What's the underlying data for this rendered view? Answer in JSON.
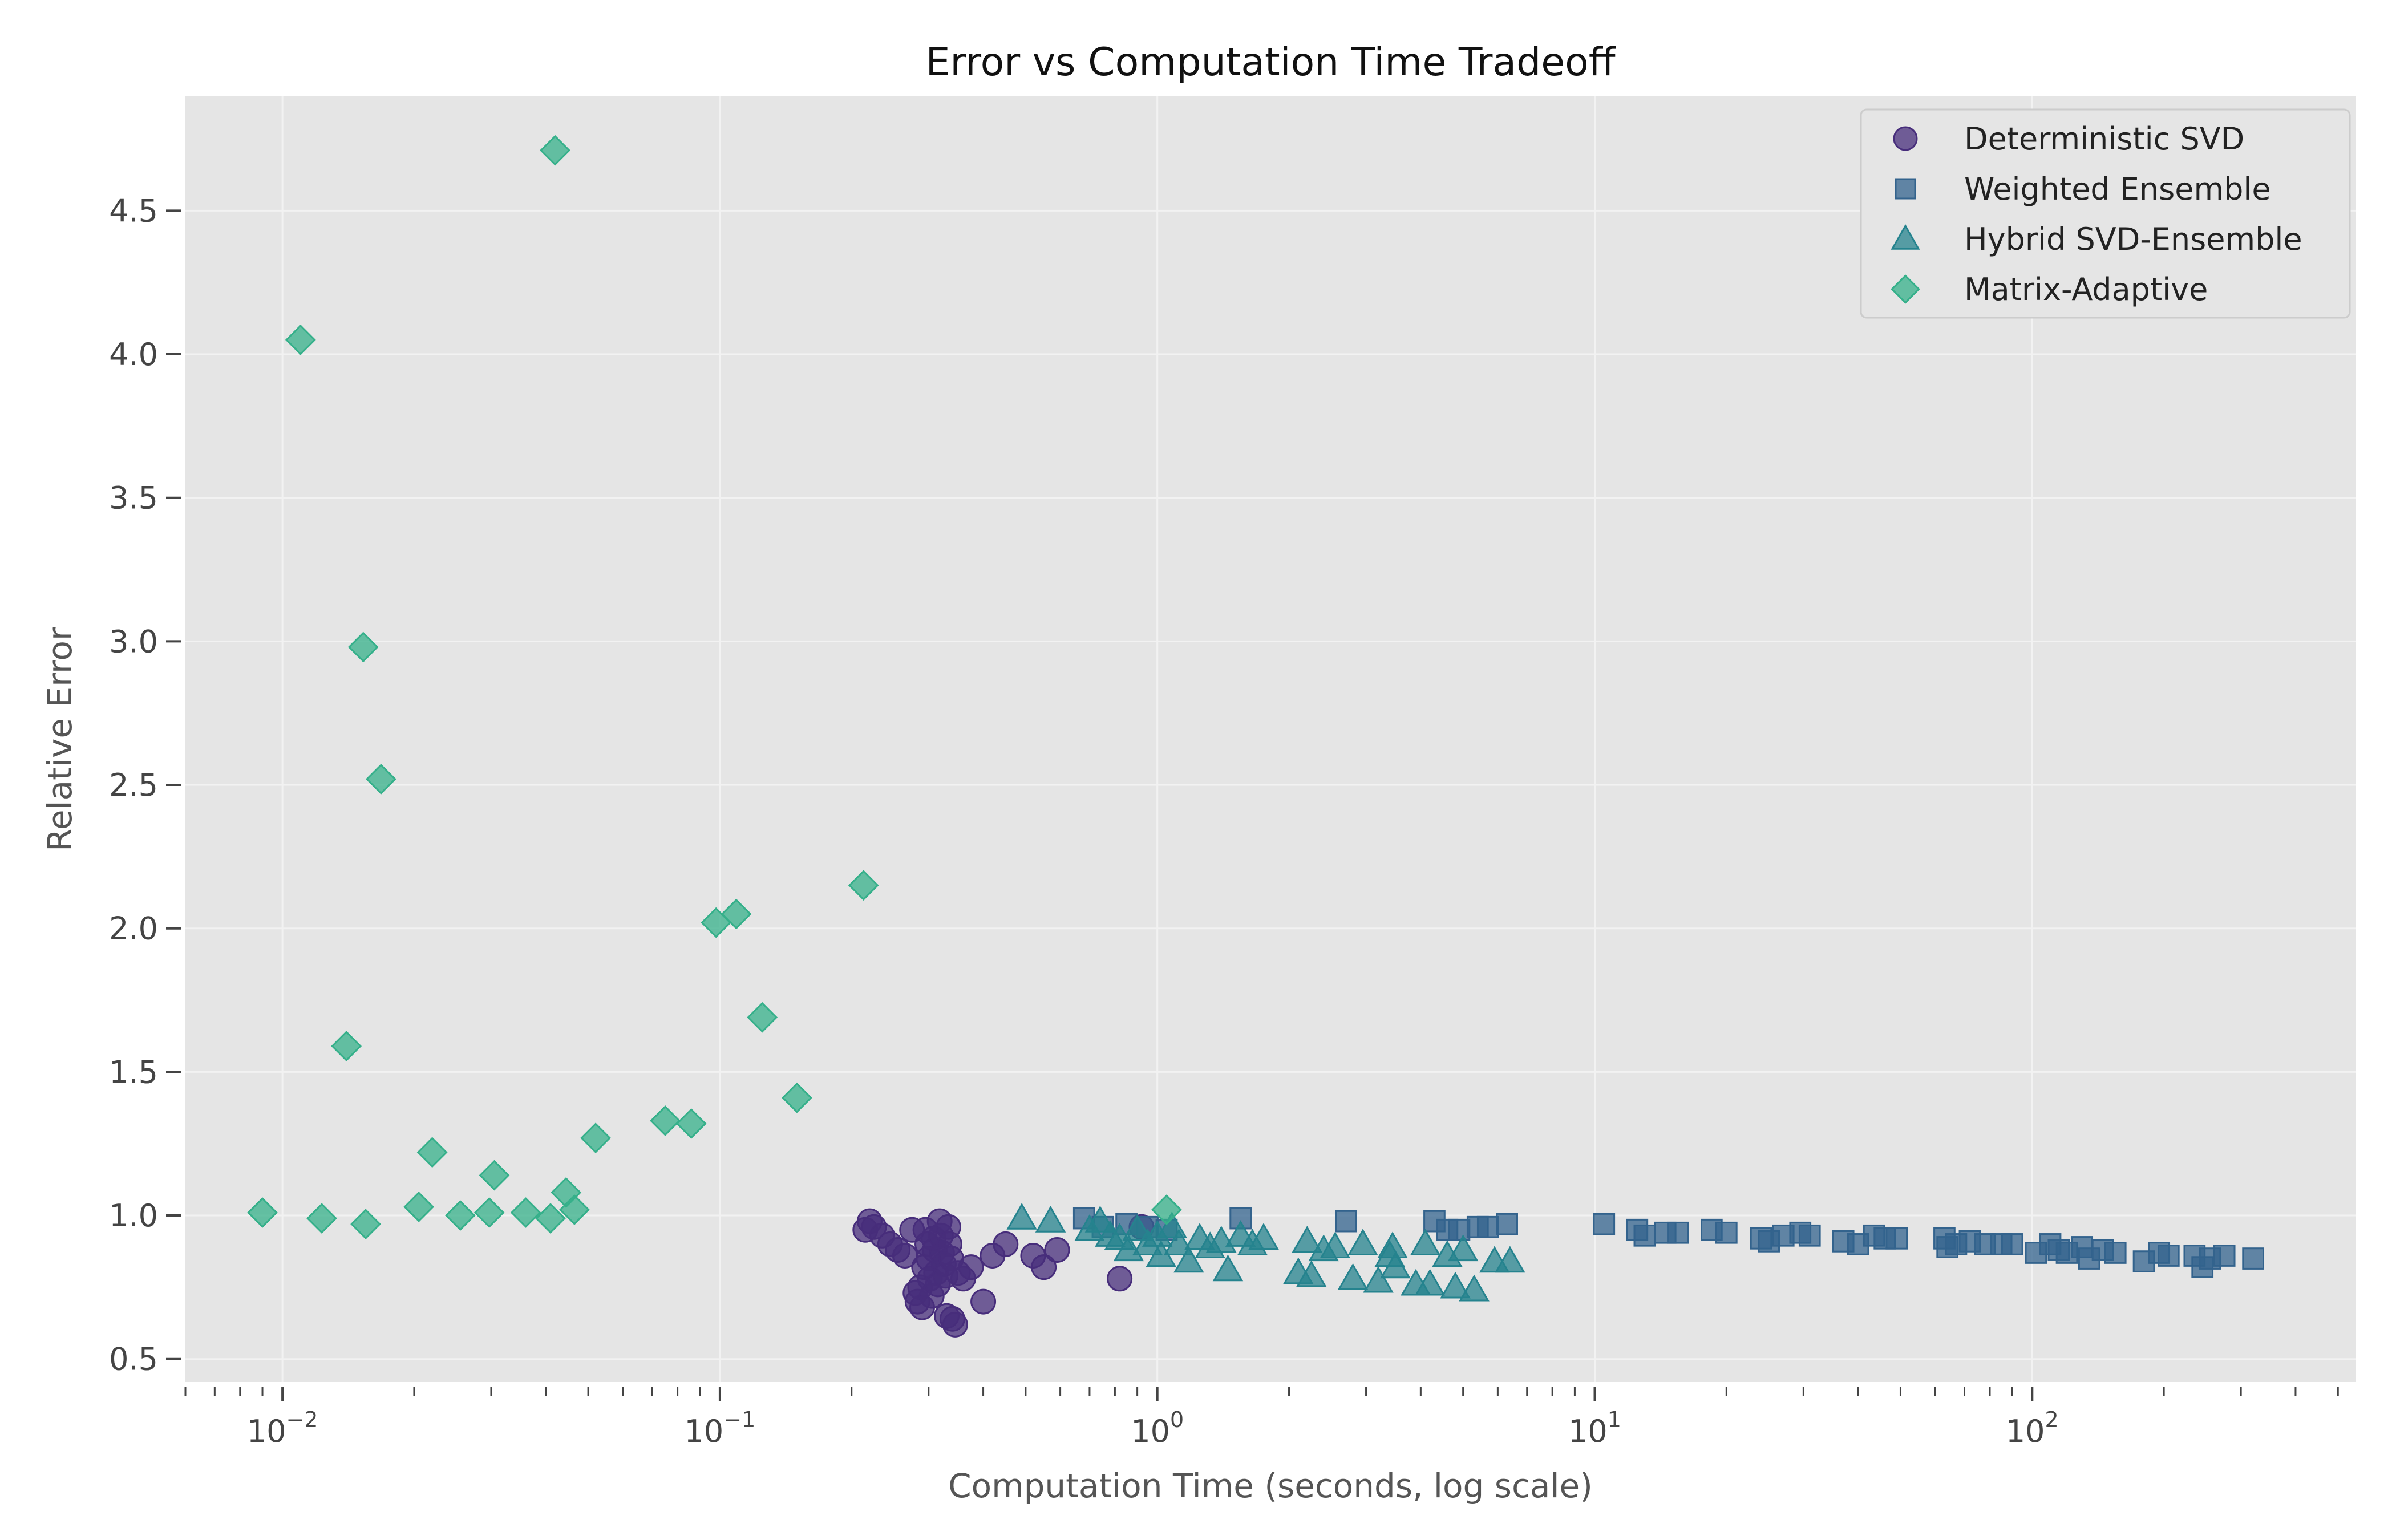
{
  "chart_data": {
    "type": "scatter",
    "title": "Error vs Computation Time Tradeoff",
    "xlabel": "Computation Time (seconds, log scale)",
    "ylabel": "Relative Error",
    "xscale": "log",
    "xlim": [
      0.006,
      550
    ],
    "ylim": [
      0.42,
      4.9
    ],
    "yticks": [
      0.5,
      1.0,
      1.5,
      2.0,
      2.5,
      3.0,
      3.5,
      4.0,
      4.5
    ],
    "ytick_labels": [
      "0.5",
      "1.0",
      "1.5",
      "2.0",
      "2.5",
      "3.0",
      "3.5",
      "4.0",
      "4.5"
    ],
    "xticks_major": [
      0.01,
      0.1,
      1,
      10,
      100
    ],
    "xtick_labels": [
      {
        "base": "10",
        "exp": "−2"
      },
      {
        "base": "10",
        "exp": "−1"
      },
      {
        "base": "10",
        "exp": "0"
      },
      {
        "base": "10",
        "exp": "1"
      },
      {
        "base": "10",
        "exp": "2"
      }
    ],
    "grid": true,
    "background": "#e5e5e5",
    "legend_position": "top-right",
    "series": [
      {
        "name": "Deterministic SVD",
        "marker": "circle",
        "color": "#472d7b",
        "points": [
          [
            0.215,
            0.95
          ],
          [
            0.22,
            0.98
          ],
          [
            0.225,
            0.96
          ],
          [
            0.235,
            0.93
          ],
          [
            0.245,
            0.9
          ],
          [
            0.255,
            0.88
          ],
          [
            0.265,
            0.86
          ],
          [
            0.275,
            0.95
          ],
          [
            0.28,
            0.73
          ],
          [
            0.283,
            0.7
          ],
          [
            0.287,
            0.75
          ],
          [
            0.29,
            0.68
          ],
          [
            0.293,
            0.82
          ],
          [
            0.295,
            0.95
          ],
          [
            0.298,
            0.9
          ],
          [
            0.3,
            0.85
          ],
          [
            0.302,
            0.78
          ],
          [
            0.305,
            0.72
          ],
          [
            0.308,
            0.92
          ],
          [
            0.31,
            0.88
          ],
          [
            0.312,
            0.8
          ],
          [
            0.315,
            0.76
          ],
          [
            0.318,
            0.98
          ],
          [
            0.32,
            0.93
          ],
          [
            0.322,
            0.87
          ],
          [
            0.325,
            0.83
          ],
          [
            0.328,
            0.79
          ],
          [
            0.33,
            0.65
          ],
          [
            0.333,
            0.96
          ],
          [
            0.335,
            0.9
          ],
          [
            0.338,
            0.85
          ],
          [
            0.34,
            0.64
          ],
          [
            0.345,
            0.62
          ],
          [
            0.35,
            0.8
          ],
          [
            0.36,
            0.78
          ],
          [
            0.375,
            0.82
          ],
          [
            0.4,
            0.7
          ],
          [
            0.42,
            0.86
          ],
          [
            0.45,
            0.9
          ],
          [
            0.52,
            0.86
          ],
          [
            0.55,
            0.82
          ],
          [
            0.59,
            0.88
          ],
          [
            0.82,
            0.78
          ],
          [
            0.92,
            0.96
          ]
        ]
      },
      {
        "name": "Weighted Ensemble",
        "marker": "square",
        "color": "#33638d",
        "points": [
          [
            0.68,
            0.99
          ],
          [
            0.75,
            0.96
          ],
          [
            0.85,
            0.97
          ],
          [
            0.95,
            0.96
          ],
          [
            1.05,
            0.95
          ],
          [
            1.55,
            0.99
          ],
          [
            2.7,
            0.98
          ],
          [
            4.3,
            0.98
          ],
          [
            4.6,
            0.95
          ],
          [
            4.9,
            0.95
          ],
          [
            5.4,
            0.96
          ],
          [
            5.7,
            0.96
          ],
          [
            6.3,
            0.97
          ],
          [
            10.5,
            0.97
          ],
          [
            12.5,
            0.95
          ],
          [
            13.0,
            0.93
          ],
          [
            14.5,
            0.94
          ],
          [
            15.5,
            0.94
          ],
          [
            18.5,
            0.95
          ],
          [
            20.0,
            0.94
          ],
          [
            24.0,
            0.92
          ],
          [
            25.0,
            0.91
          ],
          [
            27.0,
            0.93
          ],
          [
            29.5,
            0.94
          ],
          [
            31.0,
            0.93
          ],
          [
            37.0,
            0.91
          ],
          [
            40.0,
            0.9
          ],
          [
            43.5,
            0.93
          ],
          [
            46.0,
            0.92
          ],
          [
            49.0,
            0.92
          ],
          [
            63.0,
            0.92
          ],
          [
            64.0,
            0.89
          ],
          [
            67.0,
            0.9
          ],
          [
            72.0,
            0.91
          ],
          [
            78.0,
            0.9
          ],
          [
            85.0,
            0.9
          ],
          [
            90.0,
            0.9
          ],
          [
            102.0,
            0.87
          ],
          [
            110.0,
            0.9
          ],
          [
            115.0,
            0.88
          ],
          [
            120.0,
            0.87
          ],
          [
            130.0,
            0.89
          ],
          [
            135.0,
            0.85
          ],
          [
            145.0,
            0.88
          ],
          [
            155.0,
            0.87
          ],
          [
            180.0,
            0.84
          ],
          [
            195.0,
            0.87
          ],
          [
            205.0,
            0.86
          ],
          [
            235.0,
            0.86
          ],
          [
            245.0,
            0.82
          ],
          [
            255.0,
            0.85
          ],
          [
            275.0,
            0.86
          ],
          [
            320.0,
            0.85
          ]
        ]
      },
      {
        "name": "Hybrid SVD-Ensemble",
        "marker": "triangle",
        "color": "#25838e",
        "points": [
          [
            0.49,
            0.99
          ],
          [
            0.57,
            0.98
          ],
          [
            0.7,
            0.95
          ],
          [
            0.74,
            0.98
          ],
          [
            0.78,
            0.93
          ],
          [
            0.82,
            0.92
          ],
          [
            0.86,
            0.88
          ],
          [
            0.9,
            0.95
          ],
          [
            0.95,
            0.9
          ],
          [
            1.0,
            0.93
          ],
          [
            1.02,
            0.86
          ],
          [
            1.08,
            0.96
          ],
          [
            1.12,
            0.9
          ],
          [
            1.18,
            0.84
          ],
          [
            1.25,
            0.92
          ],
          [
            1.32,
            0.89
          ],
          [
            1.4,
            0.91
          ],
          [
            1.45,
            0.81
          ],
          [
            1.55,
            0.93
          ],
          [
            1.65,
            0.9
          ],
          [
            1.75,
            0.92
          ],
          [
            2.1,
            0.8
          ],
          [
            2.2,
            0.91
          ],
          [
            2.25,
            0.79
          ],
          [
            2.4,
            0.88
          ],
          [
            2.55,
            0.89
          ],
          [
            2.8,
            0.78
          ],
          [
            2.95,
            0.9
          ],
          [
            3.2,
            0.77
          ],
          [
            3.4,
            0.86
          ],
          [
            3.45,
            0.89
          ],
          [
            3.5,
            0.82
          ],
          [
            3.9,
            0.76
          ],
          [
            4.1,
            0.9
          ],
          [
            4.2,
            0.76
          ],
          [
            4.6,
            0.86
          ],
          [
            4.8,
            0.75
          ],
          [
            5.0,
            0.88
          ],
          [
            5.3,
            0.74
          ],
          [
            5.9,
            0.84
          ],
          [
            6.4,
            0.84
          ]
        ]
      },
      {
        "name": "Matrix-Adaptive",
        "marker": "diamond",
        "color": "#35b08a",
        "points": [
          [
            0.009,
            1.01
          ],
          [
            0.011,
            4.05
          ],
          [
            0.0123,
            0.99
          ],
          [
            0.014,
            1.59
          ],
          [
            0.0153,
            2.98
          ],
          [
            0.0155,
            0.97
          ],
          [
            0.0168,
            2.52
          ],
          [
            0.0205,
            1.03
          ],
          [
            0.022,
            1.22
          ],
          [
            0.0255,
            1.0
          ],
          [
            0.0297,
            1.01
          ],
          [
            0.0305,
            1.14
          ],
          [
            0.036,
            1.01
          ],
          [
            0.041,
            0.99
          ],
          [
            0.042,
            4.71
          ],
          [
            0.0445,
            1.08
          ],
          [
            0.0465,
            1.02
          ],
          [
            0.052,
            1.27
          ],
          [
            0.075,
            1.33
          ],
          [
            0.086,
            1.32
          ],
          [
            0.098,
            2.02
          ],
          [
            0.109,
            2.05
          ],
          [
            0.125,
            1.69
          ],
          [
            0.15,
            1.41
          ],
          [
            0.213,
            2.15
          ],
          [
            1.05,
            1.02
          ]
        ]
      }
    ]
  }
}
